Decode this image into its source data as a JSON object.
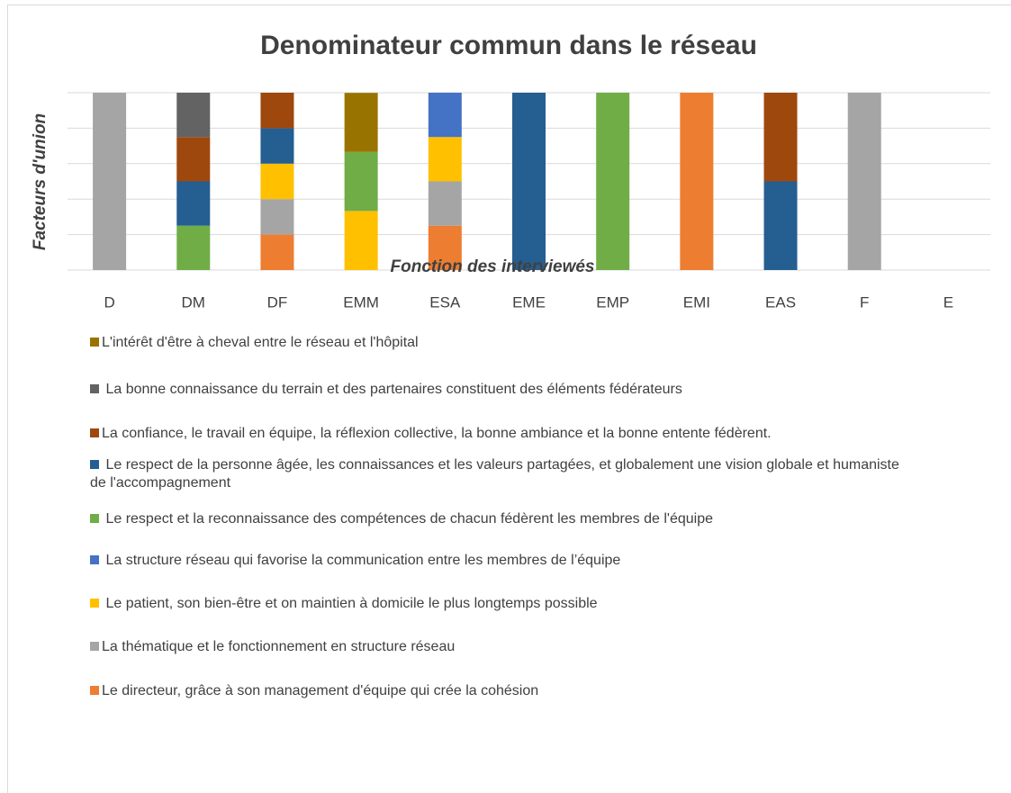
{
  "chart_data": {
    "type": "stacked_bar",
    "title": "Denominateur commun dans le réseau",
    "y_label": "Facteurs d'union",
    "x_label": "Fonction des interviewés",
    "categories": [
      "D",
      "DM",
      "DF",
      "EMM",
      "ESA",
      "EME",
      "EMP",
      "EMI",
      "EAS",
      "F",
      "E"
    ],
    "ylim": [
      0,
      100
    ],
    "yticks": [
      0,
      20,
      40,
      60,
      80,
      100
    ],
    "grid": true,
    "series": [
      {
        "name": "Le directeur, grâce à son management d'équipe qui crée la cohésion",
        "color": "#ed7d31",
        "values": [
          0,
          0,
          20,
          0,
          25,
          0,
          0,
          100,
          0,
          0,
          0
        ]
      },
      {
        "name": "La thématique et le fonctionnement en structure réseau",
        "color": "#a5a5a5",
        "values": [
          100,
          0,
          20,
          0,
          25,
          0,
          0,
          0,
          0,
          100,
          0
        ]
      },
      {
        "name": " Le patient, son bien-être et on maintien à domicile le plus longtemps possible",
        "color": "#ffc000",
        "values": [
          0,
          0,
          20,
          33.3,
          25,
          0,
          0,
          0,
          0,
          0,
          0
        ]
      },
      {
        "name": " La structure réseau qui favorise la communication entre les membres de l’équipe",
        "color": "#4472c4",
        "values": [
          0,
          0,
          0,
          0,
          25,
          0,
          0,
          0,
          0,
          0,
          0
        ]
      },
      {
        "name": " Le respect et la reconnaissance des compétences de chacun fédèrent les membres de l'équipe",
        "color": "#70ad47",
        "values": [
          0,
          25,
          0,
          33.3,
          0,
          0,
          100,
          0,
          0,
          0,
          0
        ]
      },
      {
        "name": " Le respect de la personne âgée, les connaissances et les valeurs partagées, et  globalement une vision globale et humaniste de l'accompagnement",
        "color": "#255e91",
        "values": [
          0,
          25,
          20,
          0,
          0,
          100,
          0,
          0,
          50,
          0,
          0
        ]
      },
      {
        "name": "La confiance, le travail en équipe, la réflexion collective, la bonne ambiance et la bonne entente fédèrent.",
        "color": "#9e480e",
        "values": [
          0,
          25,
          20,
          0,
          0,
          0,
          0,
          0,
          50,
          0,
          0
        ]
      },
      {
        "name": " La bonne connaissance du terrain et des partenaires constituent des éléments fédérateurs",
        "color": "#636363",
        "values": [
          0,
          25,
          0,
          0,
          0,
          0,
          0,
          0,
          0,
          0,
          0
        ]
      },
      {
        "name": "L'intérêt d'être à cheval entre le réseau et l'hôpital",
        "color": "#997300",
        "values": [
          0,
          0,
          0,
          33.3,
          0,
          0,
          0,
          0,
          0,
          0,
          0
        ]
      }
    ]
  }
}
